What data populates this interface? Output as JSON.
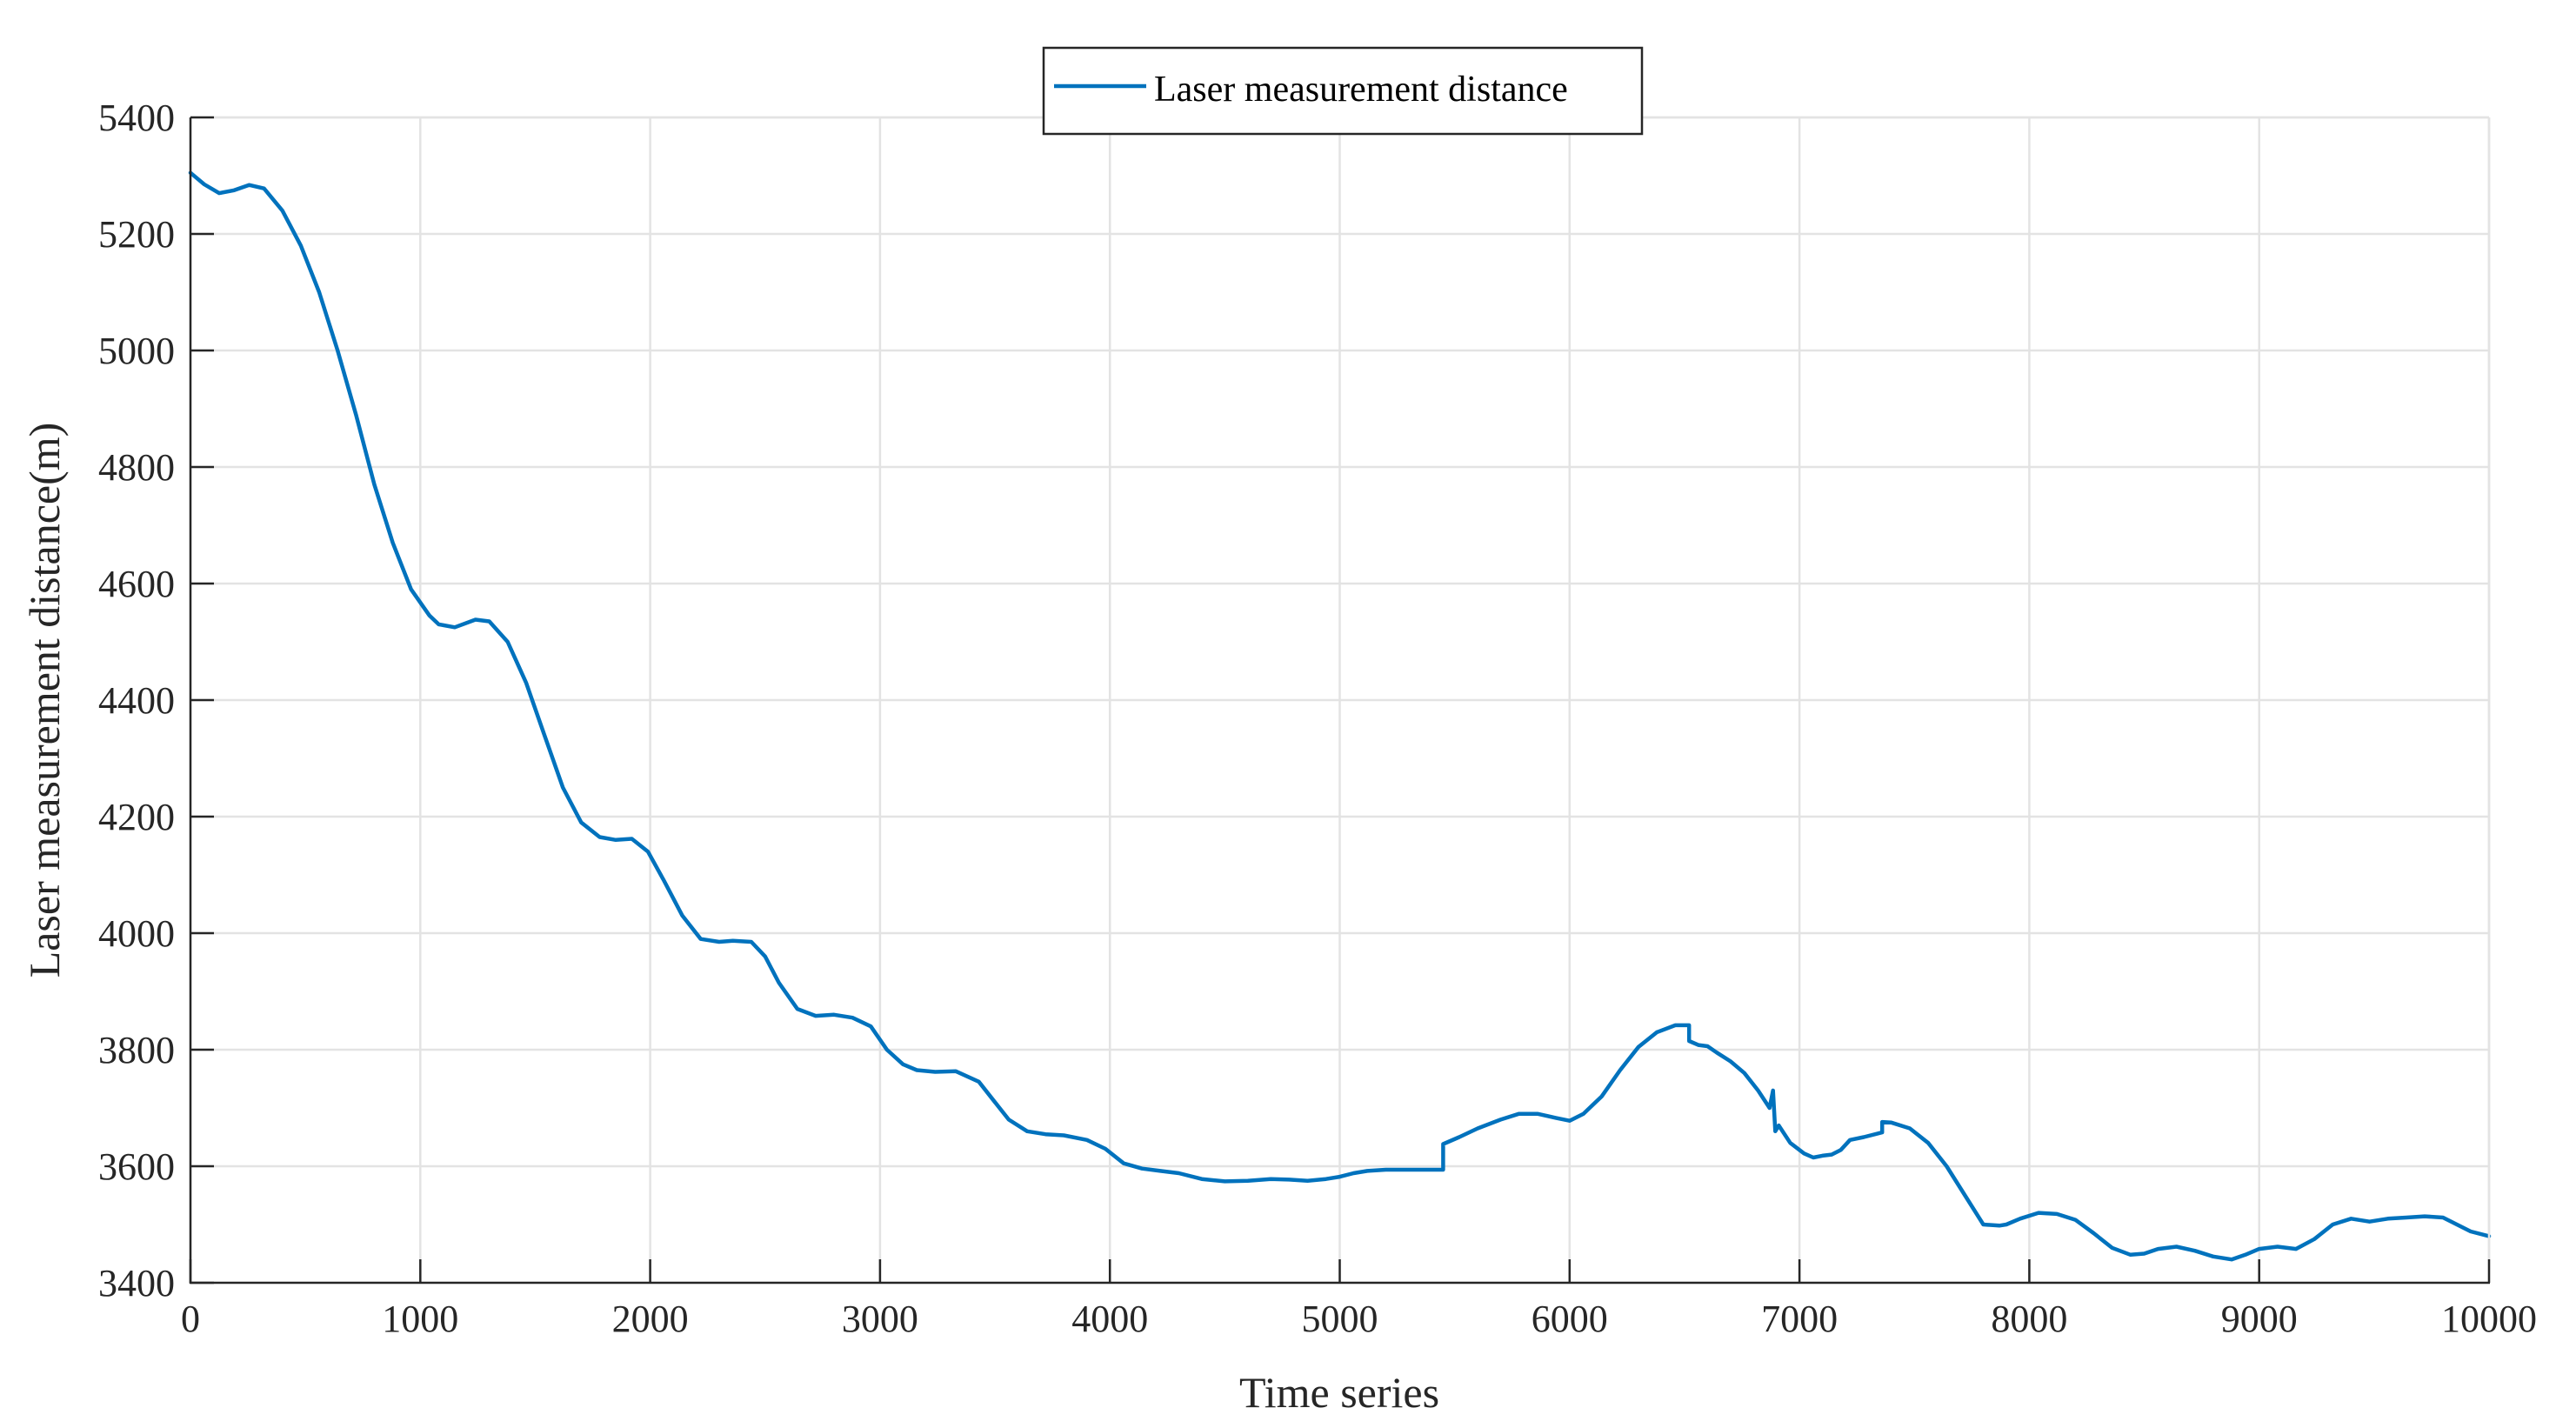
{
  "chart_data": {
    "type": "line",
    "title": "",
    "xlabel": "Time series",
    "ylabel": "Laser measurement distance(m)",
    "xlim": [
      0,
      10000
    ],
    "ylim": [
      3400,
      5400
    ],
    "xticks": [
      0,
      1000,
      2000,
      3000,
      4000,
      5000,
      6000,
      7000,
      8000,
      9000,
      10000
    ],
    "yticks": [
      3400,
      3600,
      3800,
      4000,
      4200,
      4400,
      4600,
      4800,
      5000,
      5200,
      5400
    ],
    "grid": true,
    "legend_position": "top-center",
    "series": [
      {
        "name": "Laser measurement distance",
        "color": "#0072BD",
        "x": [
          0,
          60,
          125,
          190,
          255,
          320,
          400,
          480,
          560,
          640,
          720,
          800,
          880,
          960,
          1040,
          1080,
          1150,
          1240,
          1300,
          1380,
          1460,
          1540,
          1620,
          1700,
          1780,
          1850,
          1920,
          1990,
          2060,
          2140,
          2220,
          2300,
          2360,
          2440,
          2500,
          2560,
          2640,
          2720,
          2800,
          2880,
          2960,
          3030,
          3100,
          3160,
          3240,
          3330,
          3430,
          3500,
          3560,
          3640,
          3720,
          3800,
          3900,
          3980,
          4060,
          4140,
          4220,
          4300,
          4400,
          4500,
          4600,
          4700,
          4780,
          4860,
          4940,
          5000,
          5060,
          5120,
          5200,
          5300,
          5450,
          5450,
          5520,
          5600,
          5700,
          5780,
          5860,
          5940,
          6000,
          6060,
          6140,
          6220,
          6300,
          6380,
          6460,
          6520,
          6520,
          6560,
          6600,
          6640,
          6700,
          6760,
          6820,
          6870,
          6885,
          6895,
          6910,
          6960,
          7020,
          7060,
          7100,
          7140,
          7180,
          7220,
          7280,
          7360,
          7360,
          7400,
          7480,
          7560,
          7640,
          7720,
          7800,
          7870,
          7900,
          7960,
          8040,
          8120,
          8200,
          8280,
          8360,
          8440,
          8500,
          8560,
          8640,
          8720,
          8800,
          8880,
          8940,
          9000,
          9080,
          9160,
          9240,
          9320,
          9400,
          9480,
          9560,
          9640,
          9720,
          9800,
          9860,
          9920,
          10000
        ],
        "y": [
          5305,
          5285,
          5270,
          5275,
          5284,
          5278,
          5240,
          5180,
          5100,
          5000,
          4890,
          4770,
          4670,
          4590,
          4545,
          4530,
          4525,
          4538,
          4535,
          4500,
          4430,
          4340,
          4250,
          4190,
          4165,
          4160,
          4162,
          4140,
          4090,
          4030,
          3990,
          3985,
          3987,
          3985,
          3960,
          3915,
          3870,
          3858,
          3860,
          3855,
          3840,
          3800,
          3775,
          3765,
          3762,
          3763,
          3745,
          3710,
          3680,
          3660,
          3655,
          3653,
          3645,
          3630,
          3605,
          3596,
          3592,
          3588,
          3578,
          3574,
          3575,
          3578,
          3577,
          3575,
          3578,
          3582,
          3588,
          3592,
          3594,
          3594,
          3594,
          3638,
          3650,
          3665,
          3680,
          3690,
          3690,
          3683,
          3678,
          3690,
          3720,
          3765,
          3805,
          3830,
          3842,
          3842,
          3815,
          3808,
          3806,
          3795,
          3780,
          3760,
          3730,
          3700,
          3730,
          3660,
          3670,
          3640,
          3622,
          3615,
          3618,
          3620,
          3628,
          3645,
          3650,
          3658,
          3676,
          3675,
          3665,
          3640,
          3600,
          3550,
          3500,
          3498,
          3500,
          3510,
          3520,
          3518,
          3508,
          3485,
          3460,
          3448,
          3450,
          3458,
          3462,
          3455,
          3445,
          3440,
          3448,
          3458,
          3462,
          3458,
          3475,
          3500,
          3510,
          3505,
          3510,
          3512,
          3514,
          3512,
          3500,
          3488,
          3480
        ]
      }
    ]
  },
  "legend": {
    "label": "Laser measurement distance"
  },
  "axes": {
    "xlabel": "Time series",
    "ylabel": "Laser measurement distance(m)"
  }
}
